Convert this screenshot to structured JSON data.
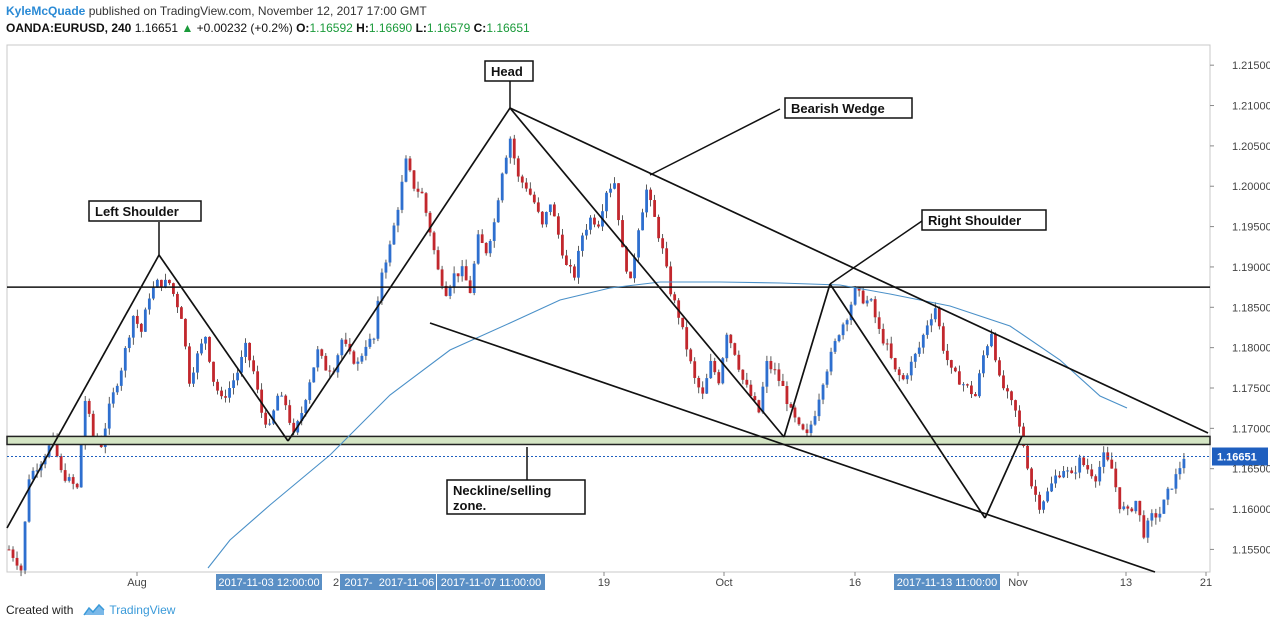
{
  "header": {
    "author": "KyleMcQuade",
    "published_text": "published on TradingView.com, November 12, 2017 17:00 GMT",
    "symbol": "OANDA:EURUSD, 240",
    "last": "1.16651",
    "change": "+0.00232 (+0.2%)",
    "o_label": "O:",
    "o_value": "1.16592",
    "h_label": "H:",
    "h_value": "1.16690",
    "l_label": "L:",
    "l_value": "1.16579",
    "c_label": "C:",
    "c_value": "1.16651"
  },
  "footer": {
    "created_with": "Created with",
    "brand": "TradingView"
  },
  "colors": {
    "up": "#2e6fcf",
    "down": "#c2272d",
    "ma": "#4a90c8",
    "zone_fill": "#d4e5c4",
    "price_label": "#1f5fbf"
  },
  "chart_data": {
    "type": "candlestick",
    "ylim": [
      1.1522,
      1.2175
    ],
    "y_ticks": [
      "1.21500",
      "1.21000",
      "1.20500",
      "1.20000",
      "1.19500",
      "1.19000",
      "1.18500",
      "1.18000",
      "1.17500",
      "1.17000",
      "1.16500",
      "1.16000",
      "1.15500"
    ],
    "x_ticks": [
      "Aug",
      "19",
      "Oct",
      "16",
      "Nov",
      "13",
      "21"
    ],
    "x_labels_partial": [
      "2"
    ],
    "date_boxes": [
      "2017-11-03 12:00:00",
      "2017-",
      "2017-11-06",
      "2017-11-07 11:00:00",
      "2017-11-13 11:00:00"
    ],
    "current_price_label": "1.16651",
    "annotations": [
      {
        "label": "Head"
      },
      {
        "label": "Bearish Wedge"
      },
      {
        "label": "Left Shoulder"
      },
      {
        "label": "Right Shoulder"
      },
      {
        "label": "Neckline/selling zone."
      }
    ],
    "neckline_zone": [
      1.168,
      1.169
    ],
    "resistance_level": 1.1875,
    "price_path": [
      [
        0,
        1.155
      ],
      [
        2,
        1.1535
      ],
      [
        3,
        1.1525
      ],
      [
        5,
        1.164
      ],
      [
        8,
        1.166
      ],
      [
        11,
        1.1685
      ],
      [
        13,
        1.1645
      ],
      [
        15,
        1.1635
      ],
      [
        17,
        1.1625
      ],
      [
        19,
        1.1735
      ],
      [
        21,
        1.169
      ],
      [
        23,
        1.168
      ],
      [
        25,
        1.1725
      ],
      [
        28,
        1.1775
      ],
      [
        31,
        1.184
      ],
      [
        33,
        1.182
      ],
      [
        35,
        1.1865
      ],
      [
        37,
        1.188
      ],
      [
        40,
        1.188
      ],
      [
        43,
        1.184
      ],
      [
        45,
        1.176
      ],
      [
        47,
        1.179
      ],
      [
        49,
        1.1815
      ],
      [
        51,
        1.176
      ],
      [
        53,
        1.1735
      ],
      [
        55,
        1.175
      ],
      [
        57,
        1.177
      ],
      [
        59,
        1.18
      ],
      [
        61,
        1.177
      ],
      [
        63,
        1.172
      ],
      [
        65,
        1.17
      ],
      [
        67,
        1.174
      ],
      [
        69,
        1.173
      ],
      [
        71,
        1.169
      ],
      [
        73,
        1.172
      ],
      [
        75,
        1.176
      ],
      [
        77,
        1.1795
      ],
      [
        79,
        1.1775
      ],
      [
        81,
        1.1775
      ],
      [
        83,
        1.181
      ],
      [
        85,
        1.179
      ],
      [
        87,
        1.178
      ],
      [
        89,
        1.1805
      ],
      [
        91,
        1.181
      ],
      [
        93,
        1.1895
      ],
      [
        95,
        1.1925
      ],
      [
        97,
        1.1975
      ],
      [
        99,
        1.203
      ],
      [
        101,
        1.2
      ],
      [
        103,
        1.199
      ],
      [
        105,
        1.1945
      ],
      [
        107,
        1.1895
      ],
      [
        109,
        1.187
      ],
      [
        111,
        1.189
      ],
      [
        113,
        1.1895
      ],
      [
        115,
        1.187
      ],
      [
        117,
        1.1935
      ],
      [
        119,
        1.192
      ],
      [
        121,
        1.1955
      ],
      [
        123,
        1.202
      ],
      [
        125,
        1.206
      ],
      [
        127,
        1.201
      ],
      [
        129,
        1.2
      ],
      [
        131,
        1.198
      ],
      [
        133,
        1.195
      ],
      [
        135,
        1.198
      ],
      [
        137,
        1.194
      ],
      [
        139,
        1.19
      ],
      [
        141,
        1.189
      ],
      [
        143,
        1.194
      ],
      [
        145,
        1.196
      ],
      [
        147,
        1.1955
      ],
      [
        149,
        1.1995
      ],
      [
        151,
        1.2005
      ],
      [
        153,
        1.192
      ],
      [
        155,
        1.188
      ],
      [
        157,
        1.195
      ],
      [
        159,
        1.1995
      ],
      [
        161,
        1.196
      ],
      [
        163,
        1.192
      ],
      [
        165,
        1.187
      ],
      [
        167,
        1.184
      ],
      [
        169,
        1.18
      ],
      [
        171,
        1.176
      ],
      [
        173,
        1.174
      ],
      [
        175,
        1.178
      ],
      [
        177,
        1.176
      ],
      [
        179,
        1.182
      ],
      [
        181,
        1.1795
      ],
      [
        183,
        1.176
      ],
      [
        185,
        1.174
      ],
      [
        187,
        1.172
      ],
      [
        189,
        1.178
      ],
      [
        191,
        1.177
      ],
      [
        193,
        1.175
      ],
      [
        195,
        1.172
      ],
      [
        197,
        1.17
      ],
      [
        199,
        1.169
      ],
      [
        201,
        1.172
      ],
      [
        203,
        1.176
      ],
      [
        205,
        1.179
      ],
      [
        207,
        1.182
      ],
      [
        209,
        1.184
      ],
      [
        211,
        1.187
      ],
      [
        213,
        1.186
      ],
      [
        215,
        1.1855
      ],
      [
        217,
        1.182
      ],
      [
        219,
        1.18
      ],
      [
        221,
        1.177
      ],
      [
        223,
        1.176
      ],
      [
        225,
        1.178
      ],
      [
        227,
        1.18
      ],
      [
        229,
        1.183
      ],
      [
        231,
        1.185
      ],
      [
        233,
        1.18
      ],
      [
        235,
        1.177
      ],
      [
        237,
        1.176
      ],
      [
        239,
        1.175
      ],
      [
        241,
        1.174
      ],
      [
        243,
        1.179
      ],
      [
        245,
        1.182
      ],
      [
        247,
        1.176
      ],
      [
        249,
        1.174
      ],
      [
        251,
        1.172
      ],
      [
        253,
        1.168
      ],
      [
        255,
        1.163
      ],
      [
        257,
        1.1605
      ],
      [
        259,
        1.162
      ],
      [
        261,
        1.164
      ],
      [
        263,
        1.165
      ],
      [
        265,
        1.164
      ],
      [
        267,
        1.166
      ],
      [
        269,
        1.165
      ],
      [
        271,
        1.164
      ],
      [
        273,
        1.1665
      ],
      [
        275,
        1.165
      ],
      [
        277,
        1.1605
      ],
      [
        279,
        1.1595
      ],
      [
        281,
        1.161
      ],
      [
        283,
        1.157
      ],
      [
        285,
        1.159
      ],
      [
        287,
        1.1595
      ],
      [
        289,
        1.162
      ],
      [
        291,
        1.164
      ],
      [
        293,
        1.1665
      ]
    ]
  }
}
